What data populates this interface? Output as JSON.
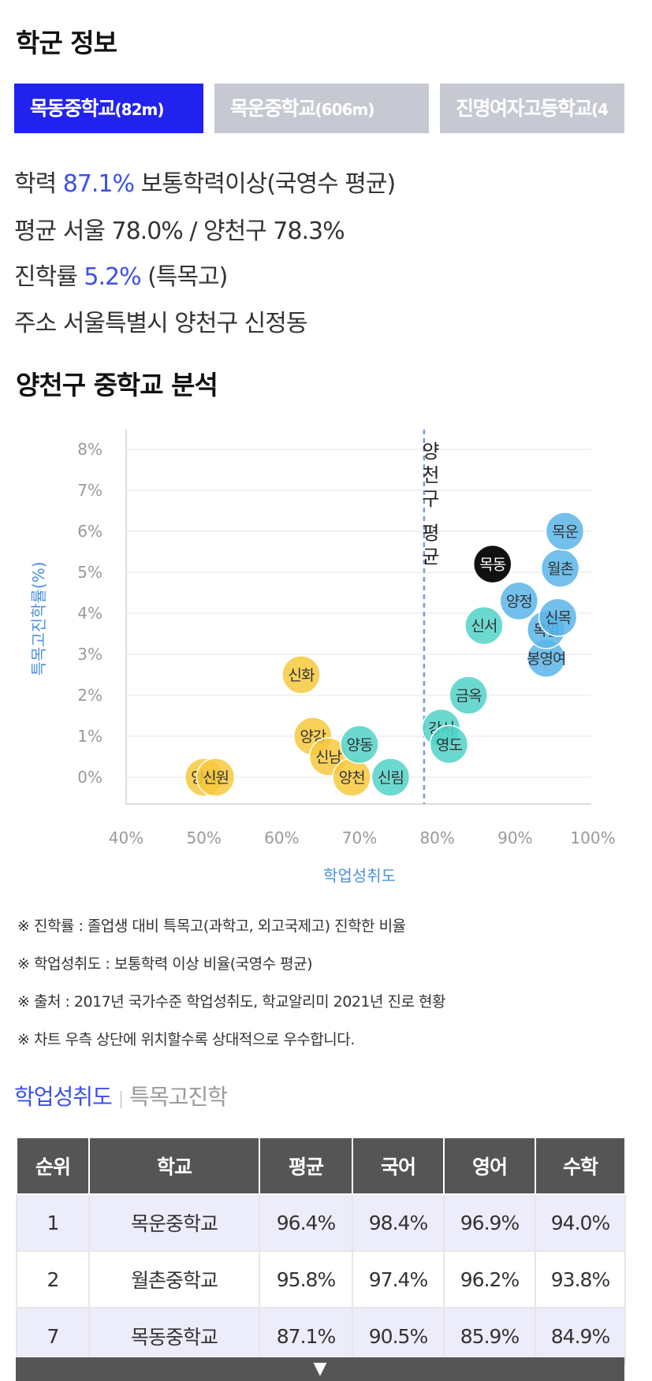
{
  "section_title": "학군 정보",
  "tabs": [
    {
      "name": "목동중학교",
      "dist": "(82m)",
      "active": true
    },
    {
      "name": "목운중학교",
      "dist": "(606m)",
      "active": false
    },
    {
      "name": "진명여자고등학교",
      "dist": "(4",
      "active": false
    }
  ],
  "info": {
    "academic_label": "학력",
    "academic_value": "87.1%",
    "academic_desc": "보통학력이상(국영수 평균)",
    "average_label": "평균",
    "average_text": "서울 78.0% / 양천구 78.3%",
    "progress_label": "진학률",
    "progress_value": "5.2%",
    "progress_desc": "(특목고)",
    "address_label": "주소",
    "address_text": "서울특별시 양천구 신정동"
  },
  "analysis_title": "양천구 중학교 분석",
  "chart_data": {
    "type": "scatter",
    "xlabel": "학업성취도",
    "ylabel": "특목고진학률(%)",
    "xlim": [
      40,
      100
    ],
    "ylim": [
      -0.7,
      8.5
    ],
    "x_ticks": [
      "40%",
      "50%",
      "60%",
      "70%",
      "80%",
      "90%",
      "100%"
    ],
    "y_ticks": [
      "0%",
      "1%",
      "2%",
      "3%",
      "4%",
      "5%",
      "6%",
      "7%",
      "8%"
    ],
    "grid": true,
    "reference_line": {
      "x": 78.3,
      "label": "양천구 평균"
    },
    "colors": {
      "yellow": "#f7c93e",
      "teal": "#52d2c8",
      "blue": "#5ab5ea",
      "black": "#111111",
      "axis_blue": "#4a90e2",
      "ref_line": "#7f9ad9"
    },
    "points": [
      {
        "label": "양서",
        "x": 50.0,
        "y": 0.0,
        "color": "yellow"
      },
      {
        "label": "신원",
        "x": 51.5,
        "y": 0.0,
        "color": "yellow"
      },
      {
        "label": "신화",
        "x": 62.5,
        "y": 2.5,
        "color": "yellow"
      },
      {
        "label": "양강",
        "x": 64.0,
        "y": 1.0,
        "color": "yellow"
      },
      {
        "label": "신남",
        "x": 66.0,
        "y": 0.5,
        "color": "yellow"
      },
      {
        "label": "양천",
        "x": 69.0,
        "y": 0.0,
        "color": "yellow"
      },
      {
        "label": "양동",
        "x": 70.0,
        "y": 0.8,
        "color": "teal"
      },
      {
        "label": "신림",
        "x": 74.0,
        "y": 0.0,
        "color": "teal"
      },
      {
        "label": "강서",
        "x": 80.5,
        "y": 1.2,
        "color": "teal"
      },
      {
        "label": "영도",
        "x": 81.5,
        "y": 0.8,
        "color": "teal"
      },
      {
        "label": "금옥",
        "x": 84.0,
        "y": 2.0,
        "color": "teal"
      },
      {
        "label": "신서",
        "x": 86.0,
        "y": 3.7,
        "color": "teal"
      },
      {
        "label": "목동",
        "x": 87.1,
        "y": 5.2,
        "color": "black"
      },
      {
        "label": "양정",
        "x": 90.5,
        "y": 4.3,
        "color": "blue"
      },
      {
        "label": "봉영여",
        "x": 94.0,
        "y": 2.9,
        "color": "blue"
      },
      {
        "label": "목일",
        "x": 94.0,
        "y": 3.6,
        "color": "blue"
      },
      {
        "label": "신목",
        "x": 95.5,
        "y": 3.9,
        "color": "blue"
      },
      {
        "label": "월촌",
        "x": 95.8,
        "y": 5.1,
        "color": "blue"
      },
      {
        "label": "목운",
        "x": 96.4,
        "y": 6.0,
        "color": "blue"
      }
    ]
  },
  "notes": [
    "※ 진학률 : 졸업생 대비 특목고(과학고, 외고국제고) 진학한 비율",
    "※ 학업성취도 : 보통학력 이상 비율(국영수 평균)",
    "※ 출처 : 2017년 국가수준 학업성취도, 학교알리미 2021년 진로 현황",
    "※ 차트 우측 상단에 위치할수록 상대적으로 우수합니다."
  ],
  "subtabs": {
    "active": "학업성취도",
    "separator": "|",
    "other": "특목고진학"
  },
  "table": {
    "headers": [
      "순위",
      "학교",
      "평균",
      "국어",
      "영어",
      "수학"
    ],
    "rows": [
      [
        "1",
        "목운중학교",
        "96.4%",
        "98.4%",
        "96.9%",
        "94.0%"
      ],
      [
        "2",
        "월촌중학교",
        "95.8%",
        "97.4%",
        "96.2%",
        "93.8%"
      ],
      [
        "7",
        "목동중학교",
        "87.1%",
        "90.5%",
        "85.9%",
        "84.9%"
      ]
    ]
  },
  "expand_icon": "▼"
}
